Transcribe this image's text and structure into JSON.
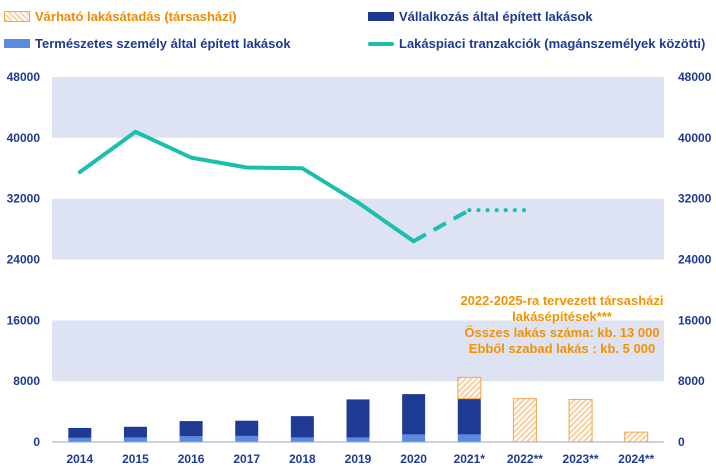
{
  "legend": {
    "items": [
      {
        "label": "Várható lakásátadás (társasházi)",
        "style": "hatch",
        "color": "#f5a54a"
      },
      {
        "label": "Vállalkozás által épített lakások",
        "style": "bar",
        "color": "#1f3a93"
      },
      {
        "label": "Természetes személy által épített lakások",
        "style": "bar",
        "color": "#5b8be0"
      },
      {
        "label": "Lakáspiaci tranzakciók (magánszemélyek közötti)",
        "style": "line",
        "color": "#1abfaf"
      }
    ]
  },
  "annotation": {
    "lines": [
      "2022-2025-ra tervezett társasházi",
      "lakásépítések***",
      "Összes lakás száma: kb. 13 000",
      "Ebből szabad lakás : kb. 5 000"
    ]
  },
  "chart_data": {
    "type": "bar",
    "categories": [
      "2014",
      "2015",
      "2016",
      "2017",
      "2018",
      "2019",
      "2020",
      "2021*",
      "2022**",
      "2023**",
      "2024**"
    ],
    "ylim": [
      0,
      48000
    ],
    "yticks": [
      "0",
      "8000",
      "16000",
      "24000",
      "32000",
      "40000",
      "48000"
    ],
    "ylim_right": [
      0,
      48000
    ],
    "grid": "banded",
    "legend_position": "top",
    "series": [
      {
        "name": "Természetes személy által épített lakások",
        "type": "bar",
        "stack": "built",
        "color": "#5b8be0",
        "values": [
          550,
          600,
          750,
          800,
          600,
          600,
          1000,
          1000,
          null,
          null,
          null
        ]
      },
      {
        "name": "Vállalkozás által épített lakások",
        "type": "bar",
        "stack": "built",
        "color": "#1f3a93",
        "values": [
          1300,
          1400,
          2000,
          2000,
          2800,
          5000,
          5300,
          4700,
          null,
          null,
          null
        ]
      },
      {
        "name": "Várható lakásátadás (társasházi)",
        "type": "bar",
        "stack": "built",
        "color": "#f5a54a",
        "values": [
          null,
          null,
          null,
          null,
          null,
          null,
          null,
          2800,
          5700,
          5600,
          1300
        ]
      },
      {
        "name": "Lakáspiaci tranzakciók (magánszemélyek közötti)",
        "type": "line",
        "axis": "right",
        "color": "#1abfaf",
        "values": [
          35500,
          40800,
          37400,
          36100,
          36000,
          31500,
          26400,
          30500,
          30500,
          null,
          null
        ],
        "solid_until": 6,
        "dashed_until": 7,
        "dotted_until": 8
      }
    ]
  }
}
